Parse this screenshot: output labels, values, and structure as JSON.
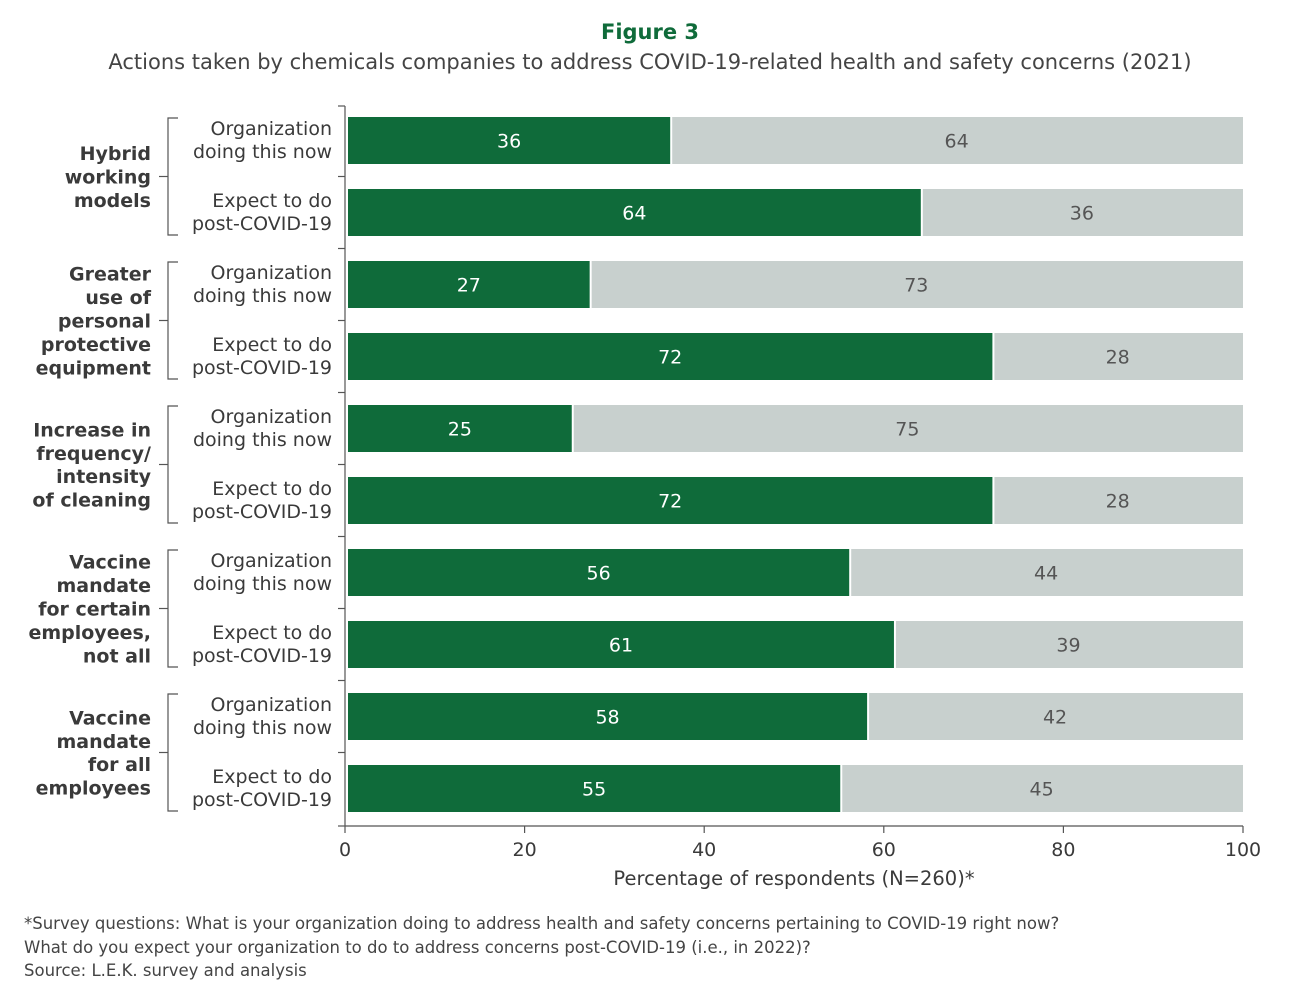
{
  "header": {
    "figure_label": "Figure 3",
    "title": "Actions taken by chemicals companies to address COVID-19-related health and safety concerns (2021)"
  },
  "colors": {
    "primary": "#0f6b3a",
    "remainder": "#c8d0ce",
    "axis": "#555555",
    "text": "#3a3a3a"
  },
  "chart_data": {
    "type": "bar",
    "orientation": "horizontal",
    "stacked": true,
    "title": "Actions taken by chemicals companies to address COVID-19-related health and safety concerns (2021)",
    "xlabel": "Percentage of respondents (N=260)*",
    "xlim": [
      0,
      100
    ],
    "xticks": [
      0,
      20,
      40,
      60,
      80,
      100
    ],
    "grid": false,
    "groups": [
      {
        "label_lines": [
          "Hybrid",
          "working",
          "models"
        ],
        "rows": [
          {
            "label_lines": [
              "Organization",
              "doing this now"
            ],
            "values": [
              36,
              64
            ]
          },
          {
            "label_lines": [
              "Expect to do",
              "post-COVID-19"
            ],
            "values": [
              64,
              36
            ]
          }
        ]
      },
      {
        "label_lines": [
          "Greater",
          "use of",
          "personal",
          "protective",
          "equipment"
        ],
        "rows": [
          {
            "label_lines": [
              "Organization",
              "doing this now"
            ],
            "values": [
              27,
              73
            ]
          },
          {
            "label_lines": [
              "Expect to do",
              "post-COVID-19"
            ],
            "values": [
              72,
              28
            ]
          }
        ]
      },
      {
        "label_lines": [
          "Increase in",
          "frequency/",
          "intensity",
          "of cleaning"
        ],
        "rows": [
          {
            "label_lines": [
              "Organization",
              "doing this now"
            ],
            "values": [
              25,
              75
            ]
          },
          {
            "label_lines": [
              "Expect to do",
              "post-COVID-19"
            ],
            "values": [
              72,
              28
            ]
          }
        ]
      },
      {
        "label_lines": [
          "Vaccine",
          "mandate",
          "for certain",
          "employees,",
          "not all"
        ],
        "rows": [
          {
            "label_lines": [
              "Organization",
              "doing this now"
            ],
            "values": [
              56,
              44
            ]
          },
          {
            "label_lines": [
              "Expect to do",
              "post-COVID-19"
            ],
            "values": [
              61,
              39
            ]
          }
        ]
      },
      {
        "label_lines": [
          "Vaccine",
          "mandate",
          "for all",
          "employees"
        ],
        "rows": [
          {
            "label_lines": [
              "Organization",
              "doing this now"
            ],
            "values": [
              58,
              42
            ]
          },
          {
            "label_lines": [
              "Expect to do",
              "post-COVID-19"
            ],
            "values": [
              55,
              45
            ]
          }
        ]
      }
    ]
  },
  "footnotes": {
    "line1": "*Survey questions: What is your organization doing to address health and safety concerns pertaining to COVID-19 right now?",
    "line2": "What do you expect your organization to do to address concerns post-COVID-19 (i.e., in 2022)?",
    "source": "Source: L.E.K. survey and analysis"
  }
}
